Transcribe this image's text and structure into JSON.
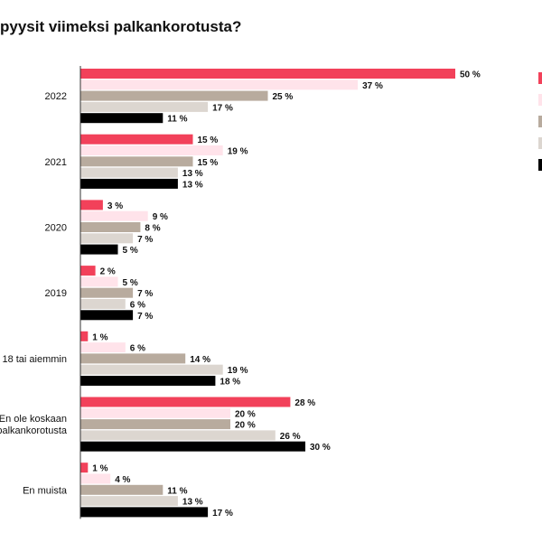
{
  "title": "pyysit viimeksi palkankorotusta?",
  "colors": [
    "#f2415a",
    "#ffe3ea",
    "#b8ab9e",
    "#dcd6d0",
    "#000000"
  ],
  "chart_data": {
    "type": "bar",
    "orientation": "horizontal",
    "title": "pyysit viimeksi palkankorotusta?",
    "categories": [
      [
        "2022"
      ],
      [
        "2021"
      ],
      [
        "2020"
      ],
      [
        "2019"
      ],
      [
        "18 tai aiemmin"
      ],
      [
        "En ole koskaan",
        "palkankorotusta"
      ],
      [
        "En muista"
      ]
    ],
    "unit": " %",
    "xlim": [
      0,
      50
    ],
    "grid": false,
    "legend": "right",
    "series": [
      {
        "values": [
          50,
          15,
          3,
          2,
          1,
          28,
          1
        ]
      },
      {
        "values": [
          37,
          19,
          9,
          5,
          6,
          20,
          4
        ]
      },
      {
        "values": [
          25,
          15,
          8,
          7,
          14,
          20,
          11
        ]
      },
      {
        "values": [
          17,
          13,
          7,
          6,
          19,
          26,
          13
        ]
      },
      {
        "values": [
          11,
          13,
          5,
          7,
          18,
          30,
          17
        ]
      }
    ]
  }
}
